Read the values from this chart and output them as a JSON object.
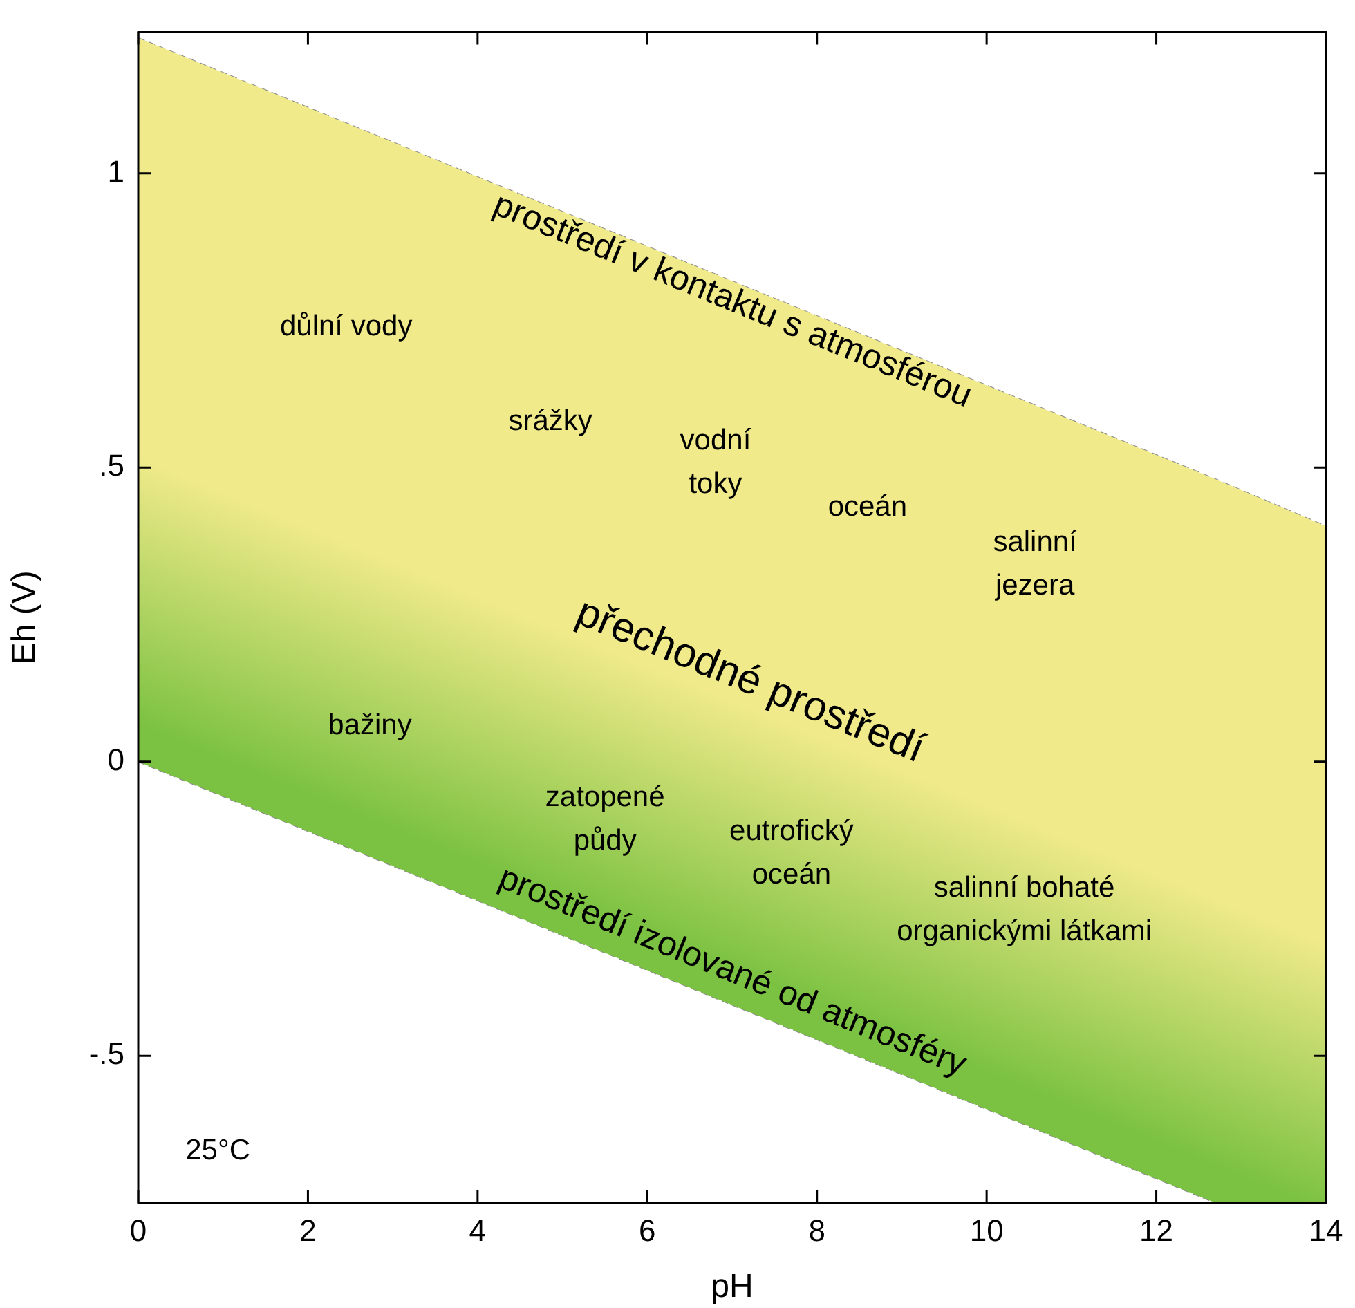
{
  "chart_data": {
    "type": "line",
    "xlabel": "pH",
    "ylabel": "Eh (V)",
    "x": [
      0,
      12.7,
      14
    ],
    "series": [
      {
        "color": "#8a8a8a",
        "values": [
          1.23,
          0.48,
          0.4
        ],
        "lower": [
          0,
          -0.75,
          -0.75
        ],
        "upper": [
          1.23,
          0.48,
          0.4
        ]
      },
      {
        "color": "#8a8a8a",
        "values": [
          0,
          -0.75,
          null
        ]
      }
    ],
    "line_style": "dashed",
    "grid": false,
    "legend": false,
    "xlim": [
      0,
      14
    ],
    "xticks": [
      0,
      2,
      4,
      6,
      8,
      10,
      12,
      14
    ],
    "ylim": [
      -0.75,
      1.24
    ],
    "yticks": [
      {
        "value": -0.5,
        "label": "-.5"
      },
      {
        "value": 0,
        "label": "0"
      },
      {
        "value": 0.5,
        "label": ".5"
      },
      {
        "value": 1,
        "label": "1"
      }
    ],
    "annotations": [
      "prostředí v kontaktu s atmosférou",
      "přechodné prostředí",
      "prostředí izolované od atmosféry",
      "důlní vody",
      "srážky",
      "vodní\ntoky",
      "oceán",
      "salinní\njezera",
      "bažiny",
      "zatopené\npůdy",
      "eutrofický\noceán",
      "salinní bohaté\norganickými látkami",
      "25°C"
    ]
  }
}
